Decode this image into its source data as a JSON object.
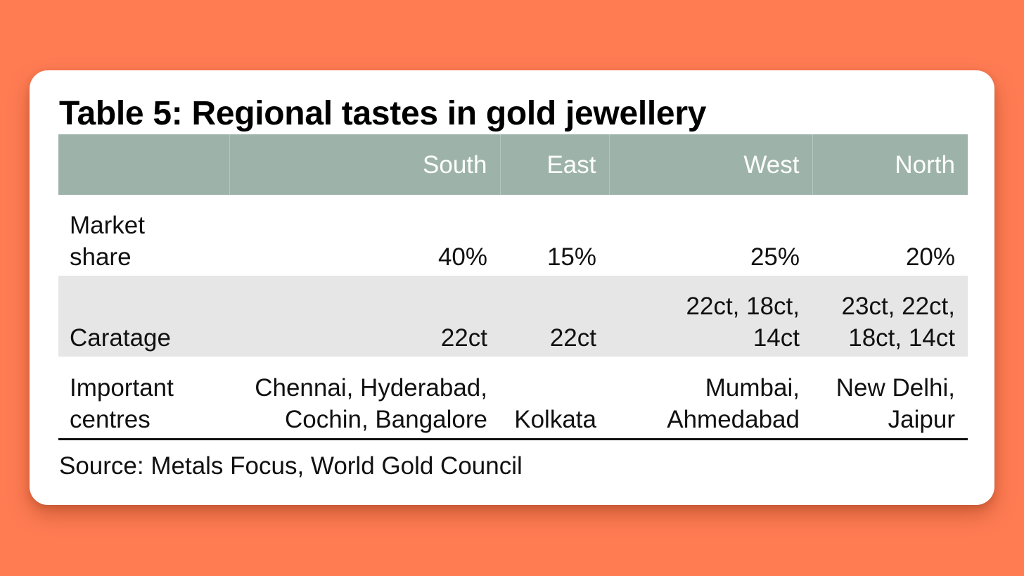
{
  "title": "Table 5: Regional tastes in gold jewellery",
  "table": {
    "columns": [
      "",
      "South",
      "East",
      "West",
      "North"
    ],
    "rows": [
      {
        "label": [
          "Market",
          "share"
        ],
        "cells": [
          [
            "40%"
          ],
          [
            "15%"
          ],
          [
            "25%"
          ],
          [
            "20%"
          ]
        ]
      },
      {
        "label": [
          "Caratage"
        ],
        "cells": [
          [
            "22ct"
          ],
          [
            "22ct"
          ],
          [
            "22ct, 18ct,",
            "14ct"
          ],
          [
            "23ct, 22ct,",
            "18ct, 14ct"
          ]
        ]
      },
      {
        "label": [
          "Important",
          "centres"
        ],
        "cells": [
          [
            "Chennai, Hyderabad,",
            "Cochin, Bangalore"
          ],
          [
            "Kolkata"
          ],
          [
            "Mumbai,",
            "Ahmedabad"
          ],
          [
            "New Delhi,",
            "Jaipur"
          ]
        ]
      }
    ]
  },
  "source": "Source: Metals Focus, World Gold Council",
  "colors": {
    "background": "#ff7c53",
    "card": "#ffffff",
    "header_fill": "#9db3aa",
    "header_text": "#ffffff",
    "shaded_row": "#e6e6e6"
  }
}
